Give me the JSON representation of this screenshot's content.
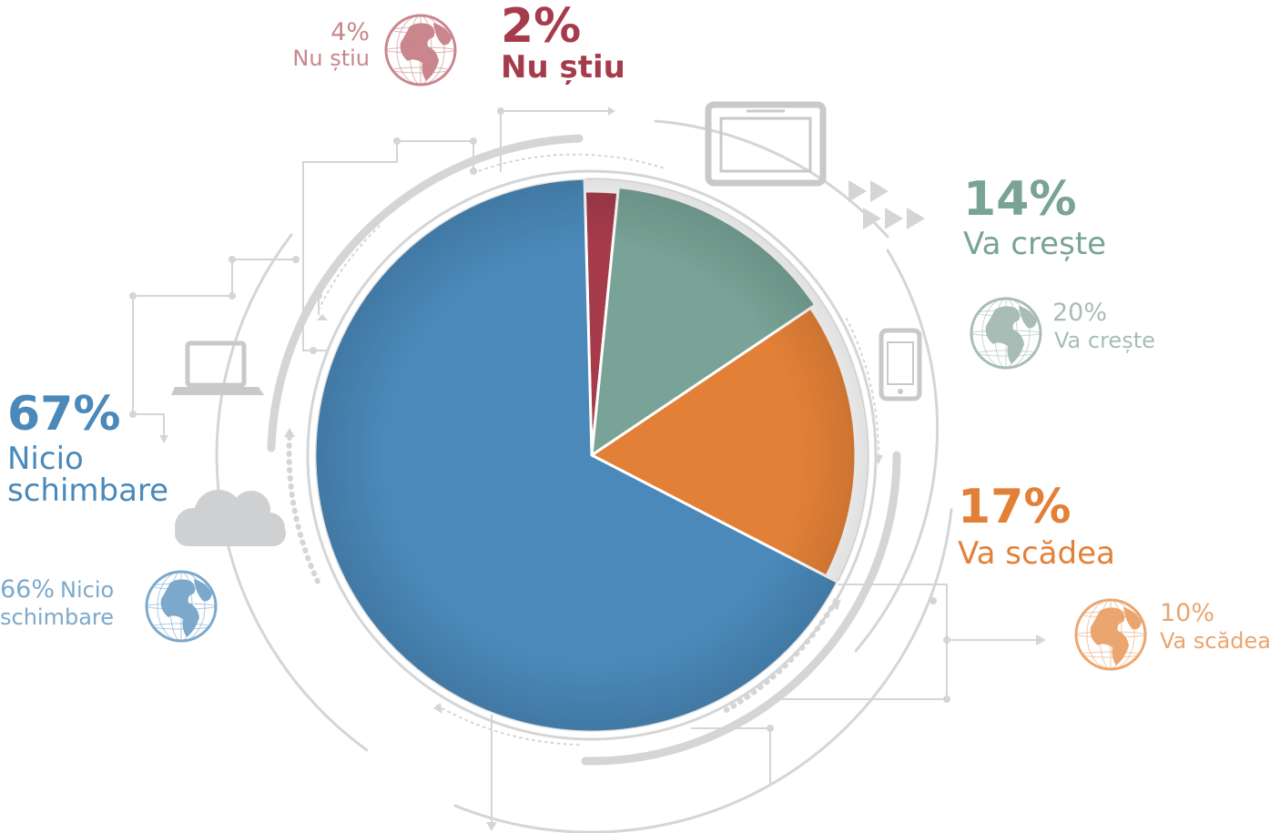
{
  "chart_data": {
    "type": "pie",
    "categories": [
      "Nu știu",
      "Va crește",
      "Va scădea",
      "Nicio schimbare"
    ],
    "values": [
      2,
      14,
      17,
      67
    ],
    "value_labels": [
      "2%",
      "14%",
      "17%",
      "67%"
    ],
    "colors": [
      "#a63b4b",
      "#78a396",
      "#e38037",
      "#4a89ba"
    ],
    "legend": "none",
    "comparison": {
      "icon": "globe-icon",
      "values": [
        4,
        20,
        10,
        66
      ],
      "labels": [
        {
          "pct": "4%",
          "cat": "Nu știu"
        },
        {
          "pct": "20%",
          "cat": "Va crește"
        },
        {
          "pct": "10%",
          "cat": "Va scădea"
        },
        {
          "pct": "66%",
          "cat_line1": "Nicio",
          "cat_line2": "schimbare"
        }
      ],
      "colors": [
        "#c9868d",
        "#a7bdb6",
        "#eba56f",
        "#7ca9cb"
      ]
    }
  },
  "labels": {
    "nustiu": {
      "pct": "2%",
      "cat": "Nu știu"
    },
    "creste": {
      "pct": "14%",
      "cat": "Va crește"
    },
    "scadea": {
      "pct": "17%",
      "cat": "Va scădea"
    },
    "nicio": {
      "pct": "67%",
      "cat_line1": "Nicio",
      "cat_line2": "schimbare"
    }
  },
  "decor": {
    "line_color": "#d4d5d7",
    "icon_color": "#c8c9cb",
    "icons": [
      "tablet-icon",
      "phone-icon",
      "laptop-icon",
      "cloud-icon",
      "play-arrows-icon"
    ]
  }
}
